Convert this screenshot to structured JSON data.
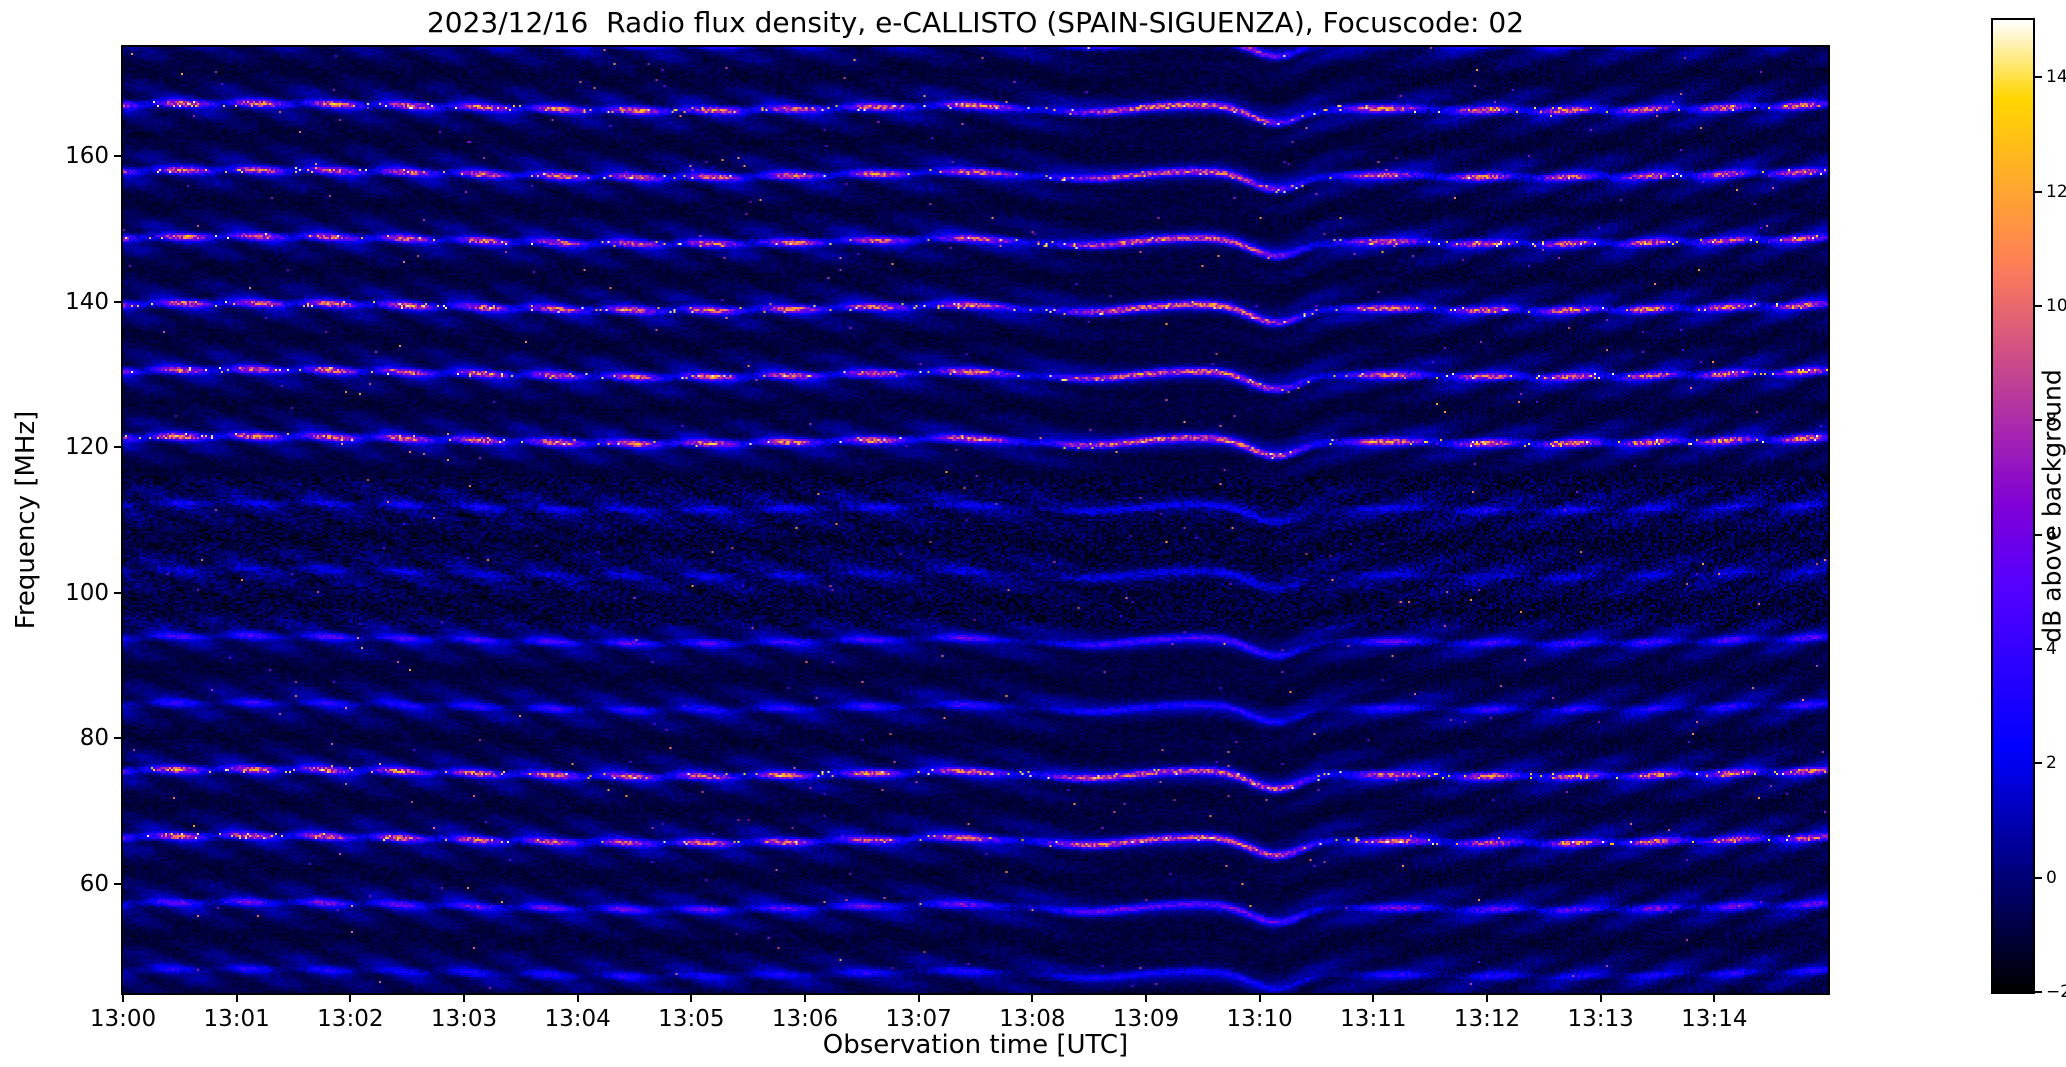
{
  "figure": {
    "background_color": "#ffffff",
    "text_color": "#000000"
  },
  "chart_data": {
    "type": "heatmap",
    "title": "2023/12/16  Radio flux density, e-CALLISTO (SPAIN-SIGUENZA), Focuscode: 02",
    "xlabel": "Observation time [UTC]",
    "ylabel": "Frequency [MHz]",
    "colorbar_label": "dB above background",
    "colormap": "gnuplot2",
    "x_range_minutes": [
      0,
      15
    ],
    "x_tick_minutes": [
      0,
      1,
      2,
      3,
      4,
      5,
      6,
      7,
      8,
      9,
      10,
      11,
      12,
      13,
      14
    ],
    "x_tick_labels": [
      "13:00",
      "13:01",
      "13:02",
      "13:03",
      "13:04",
      "13:05",
      "13:06",
      "13:07",
      "13:08",
      "13:09",
      "13:10",
      "13:11",
      "13:12",
      "13:13",
      "13:14"
    ],
    "y_range_mhz": [
      45,
      175
    ],
    "y_tick_values": [
      160,
      140,
      120,
      100,
      80,
      60
    ],
    "y_tick_labels": [
      "160",
      "140",
      "120",
      "100",
      "80",
      "60"
    ],
    "colorbar_range_db": [
      -2,
      15
    ],
    "colorbar_tick_values": [
      14,
      12,
      10,
      8,
      6,
      4,
      2,
      0,
      -2
    ],
    "colorbar_tick_labels": [
      "14",
      "12",
      "10",
      "8",
      "6",
      "4",
      "2",
      "0",
      "−2"
    ],
    "interference_bands": [
      {
        "f": 47.8,
        "line": 2.5,
        "blue": 2.3
      },
      {
        "f": 56.95,
        "line": 5.0,
        "blue": 2.5
      },
      {
        "f": 66.1,
        "line": 8.5,
        "blue": 2.6
      },
      {
        "f": 75.25,
        "line": 9.0,
        "blue": 2.6
      },
      {
        "f": 84.4,
        "line": 3.0,
        "blue": 2.4
      },
      {
        "f": 93.55,
        "line": 4.0,
        "blue": 2.4
      },
      {
        "f": 102.7,
        "line": 1.5,
        "blue": 1.9
      },
      {
        "f": 111.85,
        "line": 2.2,
        "blue": 1.9
      },
      {
        "f": 121.0,
        "line": 9.5,
        "blue": 2.6
      },
      {
        "f": 130.15,
        "line": 8.5,
        "blue": 2.6
      },
      {
        "f": 139.3,
        "line": 9.0,
        "blue": 2.6
      },
      {
        "f": 148.45,
        "line": 8.5,
        "blue": 2.6
      },
      {
        "f": 157.6,
        "line": 8.5,
        "blue": 2.6
      },
      {
        "f": 166.75,
        "line": 9.0,
        "blue": 2.6
      },
      {
        "f": 175.9,
        "line": 8.0,
        "blue": 2.6
      }
    ],
    "fringe_pattern": {
      "band_period_mhz": 9.15,
      "stripe_spacing_mhz": 4.6,
      "cross_spacing_mhz": 3.3,
      "drift_amp_mhz_per_min": 7,
      "drift_tau_min": 2.2,
      "drift_reversal_min": 9.3,
      "wobble_amp_mhz": 0.5,
      "dip_times_min": [
        8.45,
        10.15
      ],
      "dip_depths_mhz": [
        1.3,
        2.4
      ],
      "dip_widths_min": [
        0.6,
        0.32
      ],
      "noise_zone_mhz": [
        95,
        116
      ]
    }
  }
}
